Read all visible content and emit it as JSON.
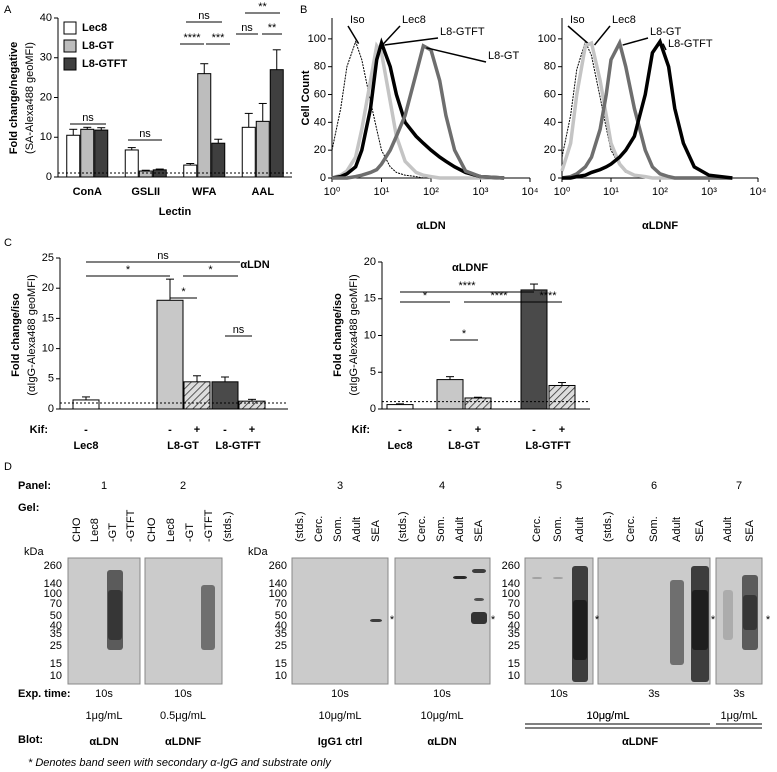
{
  "panel_letters": [
    "A",
    "B",
    "C",
    "D"
  ],
  "chart_data": [
    {
      "type": "bar",
      "ylabel": "Fold change/negative",
      "ylabel2": "(SA-Alexa488 geoMFI)",
      "xlabel": "Lectin",
      "categories": [
        "ConA",
        "GSLII",
        "WFA",
        "AAL"
      ],
      "series": [
        {
          "name": "Lec8",
          "color": "#ffffff",
          "values": [
            10.5,
            6.8,
            3,
            12.5
          ],
          "errors": [
            1.5,
            0.6,
            0.4,
            3.5
          ]
        },
        {
          "name": "L8-GT",
          "color": "#bdbdbd",
          "values": [
            12,
            1.5,
            26,
            14
          ],
          "errors": [
            0.5,
            0.2,
            2.5,
            4.5
          ]
        },
        {
          "name": "L8-GTFT",
          "color": "#3f3f3f",
          "values": [
            11.8,
            1.8,
            8.5,
            27
          ],
          "errors": [
            0.6,
            0.2,
            1,
            5
          ]
        }
      ],
      "ylim": [
        0,
        40
      ],
      "yticks": [
        0,
        10,
        20,
        30,
        40
      ],
      "reference_line": 1,
      "annotations": [
        "ns",
        "ns",
        "ns",
        "****",
        "***",
        "**",
        "ns",
        "**"
      ]
    },
    {
      "type": "line",
      "xscale": "log",
      "ylabel": "Cell Count",
      "xlabel": "αLDN",
      "x": [
        1,
        1.5,
        2,
        3,
        4,
        6,
        8,
        10,
        15,
        20,
        30,
        50,
        70,
        100,
        150,
        200,
        300,
        500,
        1000,
        3000
      ],
      "series": [
        {
          "name": "Iso",
          "color": "#000000",
          "dashed": true,
          "values": [
            20,
            50,
            80,
            98,
            85,
            55,
            35,
            20,
            8,
            4,
            2,
            1,
            0,
            0,
            0,
            0,
            0,
            0,
            0,
            0
          ]
        },
        {
          "name": "Lec8",
          "color": "#c4c4c4",
          "values": [
            0,
            2,
            5,
            15,
            35,
            70,
            95,
            90,
            55,
            30,
            12,
            4,
            2,
            1,
            0,
            0,
            0,
            0,
            0,
            0
          ]
        },
        {
          "name": "L8-GTFT",
          "color": "#000000",
          "values": [
            0,
            1,
            3,
            8,
            20,
            50,
            85,
            97,
            80,
            60,
            40,
            30,
            25,
            20,
            15,
            12,
            8,
            4,
            1,
            0
          ]
        },
        {
          "name": "L8-GT",
          "color": "#6e6e6e",
          "values": [
            0,
            0,
            0,
            1,
            2,
            4,
            6,
            10,
            20,
            30,
            45,
            75,
            95,
            92,
            70,
            45,
            20,
            5,
            1,
            0
          ]
        }
      ],
      "xlim": [
        1,
        10000
      ],
      "xticks": [
        {
          "value": 1,
          "label": "10⁰"
        },
        {
          "value": 10,
          "label": "10¹"
        },
        {
          "value": 100,
          "label": "10²"
        },
        {
          "value": 1000,
          "label": "10³"
        },
        {
          "value": 10000,
          "label": "10⁴"
        }
      ],
      "ylim": [
        0,
        115
      ],
      "yticks": [
        0,
        20,
        40,
        60,
        80,
        100
      ]
    },
    {
      "type": "line",
      "xscale": "log",
      "xlabel": "αLDNF",
      "x": [
        1,
        1.5,
        2,
        3,
        4,
        6,
        8,
        10,
        15,
        20,
        30,
        50,
        70,
        100,
        150,
        200,
        300,
        500,
        1000,
        3000
      ],
      "series": [
        {
          "name": "Iso",
          "color": "#000000",
          "dashed": true,
          "values": [
            15,
            45,
            78,
            98,
            88,
            58,
            36,
            20,
            9,
            4,
            2,
            1,
            0,
            0,
            0,
            0,
            0,
            0,
            0,
            0
          ]
        },
        {
          "name": "Lec8",
          "color": "#c4c4c4",
          "values": [
            5,
            25,
            60,
            95,
            97,
            70,
            45,
            25,
            10,
            5,
            2,
            1,
            0,
            0,
            0,
            0,
            0,
            0,
            0,
            0
          ]
        },
        {
          "name": "L8-GT",
          "color": "#6e6e6e",
          "values": [
            0,
            1,
            3,
            8,
            15,
            35,
            60,
            85,
            97,
            80,
            50,
            20,
            8,
            3,
            1,
            0,
            0,
            0,
            0,
            0
          ]
        },
        {
          "name": "L8-GTFT",
          "color": "#000000",
          "values": [
            0,
            0,
            1,
            2,
            4,
            6,
            8,
            10,
            15,
            20,
            30,
            60,
            90,
            98,
            80,
            50,
            25,
            8,
            2,
            0
          ]
        }
      ],
      "xlim": [
        1,
        10000
      ],
      "xticks": [
        {
          "value": 1,
          "label": "10⁰"
        },
        {
          "value": 10,
          "label": "10¹"
        },
        {
          "value": 100,
          "label": "10²"
        },
        {
          "value": 1000,
          "label": "10³"
        },
        {
          "value": 10000,
          "label": "10⁴"
        }
      ],
      "ylim": [
        0,
        115
      ],
      "yticks": [
        0,
        20,
        40,
        60,
        80,
        100
      ]
    },
    {
      "type": "kifbar",
      "title": "αLDN",
      "ylabel": "Fold change/iso",
      "ylabel2": "(αIgG-Alexa488 geoMFI)",
      "kif_label": "Kif:",
      "categories": [
        "-",
        "-",
        "+",
        "-",
        "+"
      ],
      "groups": [
        "Lec8",
        "L8-GT",
        "L8-GTFT"
      ],
      "values": [
        1.5,
        18,
        4.5,
        4.5,
        1.3
      ],
      "errors": [
        0.5,
        3.5,
        1,
        0.8,
        0.3
      ],
      "colors": [
        "#ffffff",
        "#c8c8c8",
        "#c8c8c8",
        "#4a4a4a",
        "#4a4a4a"
      ],
      "hatched": [
        false,
        false,
        true,
        false,
        true
      ],
      "ylim": [
        0,
        25
      ],
      "yticks": [
        0,
        5,
        10,
        15,
        20,
        25
      ],
      "reference_line": 1,
      "annotations": [
        "ns",
        "*",
        "*",
        "*",
        "ns"
      ]
    },
    {
      "type": "kifbar",
      "title": "αLDNF",
      "ylabel": "Fold change/iso",
      "ylabel2": "(αIgG-Alexa488 geoMFI)",
      "kif_label": "Kif:",
      "categories": [
        "-",
        "-",
        "+",
        "-",
        "+"
      ],
      "groups": [
        "Lec8",
        "L8-GT",
        "L8-GTFT"
      ],
      "values": [
        0.6,
        4,
        1.5,
        16.2,
        3.2
      ],
      "errors": [
        0.1,
        0.4,
        0.1,
        0.8,
        0.4
      ],
      "colors": [
        "#ffffff",
        "#c8c8c8",
        "#c8c8c8",
        "#4a4a4a",
        "#4a4a4a"
      ],
      "hatched": [
        false,
        false,
        true,
        false,
        true
      ],
      "ylim": [
        0,
        20
      ],
      "yticks": [
        0,
        5,
        10,
        15,
        20
      ],
      "reference_line": 1,
      "annotations": [
        "****",
        "*",
        "****",
        "*",
        "****"
      ]
    }
  ],
  "panel_d": {
    "row_labels": {
      "panel": "Panel:",
      "gel": "Gel:",
      "kda": "kDa",
      "exp": "Exp. time:",
      "blot": "Blot:"
    },
    "markers": [
      260,
      140,
      100,
      70,
      50,
      40,
      35,
      25,
      15,
      10
    ],
    "panels": [
      {
        "number": "1",
        "lanes": [
          "CHO",
          "Lec8",
          "-GT",
          "-GTFT"
        ],
        "exp_time": "10s"
      },
      {
        "number": "2",
        "lanes": [
          "CHO",
          "Lec8",
          "-GT",
          "-GTFT",
          "(stds.)"
        ],
        "exp_time": "10s"
      },
      {
        "number": "3",
        "lanes": [
          "(stds.)",
          "Cerc.",
          "Som.",
          "Adult",
          "SEA"
        ],
        "exp_time": "10s"
      },
      {
        "number": "4",
        "lanes": [
          "(stds.)",
          "Cerc.",
          "Som.",
          "Adult",
          "SEA"
        ],
        "exp_time": "10s"
      },
      {
        "number": "5",
        "lanes": [
          "Cerc.",
          "Som.",
          "Adult"
        ],
        "exp_time": "10s"
      },
      {
        "number": "6",
        "lanes": [
          "(stds.)",
          "Cerc.",
          "Som.",
          "Adult",
          "SEA"
        ],
        "exp_time": "3s"
      },
      {
        "number": "7",
        "lanes": [
          "Adult",
          "SEA"
        ],
        "exp_time": "3s"
      }
    ],
    "concentrations": [
      "1μg/mL",
      "0.5μg/mL",
      "10μg/mL",
      "10μg/mL",
      "10μg/mL",
      "1μg/mL"
    ],
    "blots": [
      "αLDN",
      "αLDNF",
      "IgG1 ctrl",
      "αLDN",
      "αLDNF"
    ],
    "star": "*",
    "footnote": "* Denotes band seen with secondary α-IgG and substrate only"
  }
}
